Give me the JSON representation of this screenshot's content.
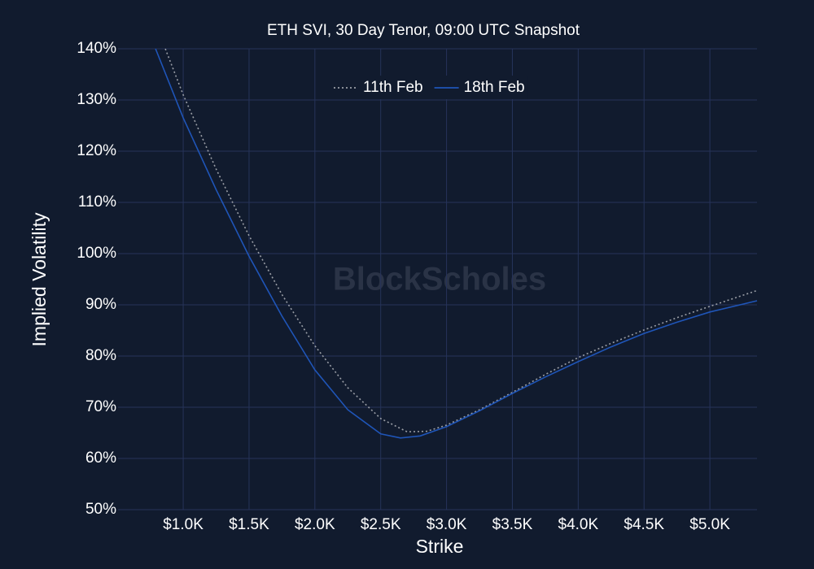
{
  "chart_data": {
    "type": "line",
    "title": "ETH SVI, 30 Day Tenor, 09:00 UTC Snapshot",
    "xlabel": "Strike",
    "ylabel": "Implied Volatility",
    "watermark": "BlockScholes",
    "grid": true,
    "legend": "top",
    "xlim": [
      505,
      5358
    ],
    "ylim": [
      50,
      140
    ],
    "xticks": [
      {
        "value": 1000,
        "label": "$1.0K"
      },
      {
        "value": 1500,
        "label": "$1.5K"
      },
      {
        "value": 2000,
        "label": "$2.0K"
      },
      {
        "value": 2500,
        "label": "$2.5K"
      },
      {
        "value": 3000,
        "label": "$3.0K"
      },
      {
        "value": 3500,
        "label": "$3.5K"
      },
      {
        "value": 4000,
        "label": "$4.0K"
      },
      {
        "value": 4500,
        "label": "$4.5K"
      },
      {
        "value": 5000,
        "label": "$5.0K"
      }
    ],
    "yticks": [
      {
        "value": 50,
        "label": "50%"
      },
      {
        "value": 60,
        "label": "60%"
      },
      {
        "value": 70,
        "label": "70%"
      },
      {
        "value": 80,
        "label": "80%"
      },
      {
        "value": 90,
        "label": "90%"
      },
      {
        "value": 100,
        "label": "100%"
      },
      {
        "value": 110,
        "label": "110%"
      },
      {
        "value": 120,
        "label": "120%"
      },
      {
        "value": 130,
        "label": "130%"
      },
      {
        "value": 140,
        "label": "140%"
      }
    ],
    "series": [
      {
        "name": "11th Feb",
        "color": "#9a9ea6",
        "dash": "dotted",
        "x": [
          864,
          1000,
          1250,
          1500,
          1750,
          2000,
          2250,
          2500,
          2700,
          2850,
          3000,
          3250,
          3500,
          3750,
          4000,
          4250,
          4500,
          4750,
          5000,
          5358
        ],
        "values": [
          140,
          131,
          116.5,
          103.5,
          92,
          82,
          73.8,
          67.8,
          65.2,
          65.3,
          66.5,
          69.5,
          72.9,
          76.4,
          79.7,
          82.5,
          85.1,
          87.5,
          89.7,
          92.8
        ]
      },
      {
        "name": "18th Feb",
        "color": "#1f55b8",
        "dash": "solid",
        "x": [
          790,
          1000,
          1250,
          1500,
          1750,
          2000,
          2250,
          2500,
          2650,
          2800,
          3000,
          3250,
          3500,
          3750,
          4000,
          4250,
          4500,
          4750,
          5000,
          5358
        ],
        "values": [
          140,
          126.5,
          112.5,
          99.5,
          87.8,
          77.3,
          69.5,
          64.8,
          64.0,
          64.4,
          66.2,
          69.3,
          72.7,
          75.9,
          78.9,
          81.8,
          84.4,
          86.6,
          88.6,
          90.8
        ]
      }
    ]
  }
}
